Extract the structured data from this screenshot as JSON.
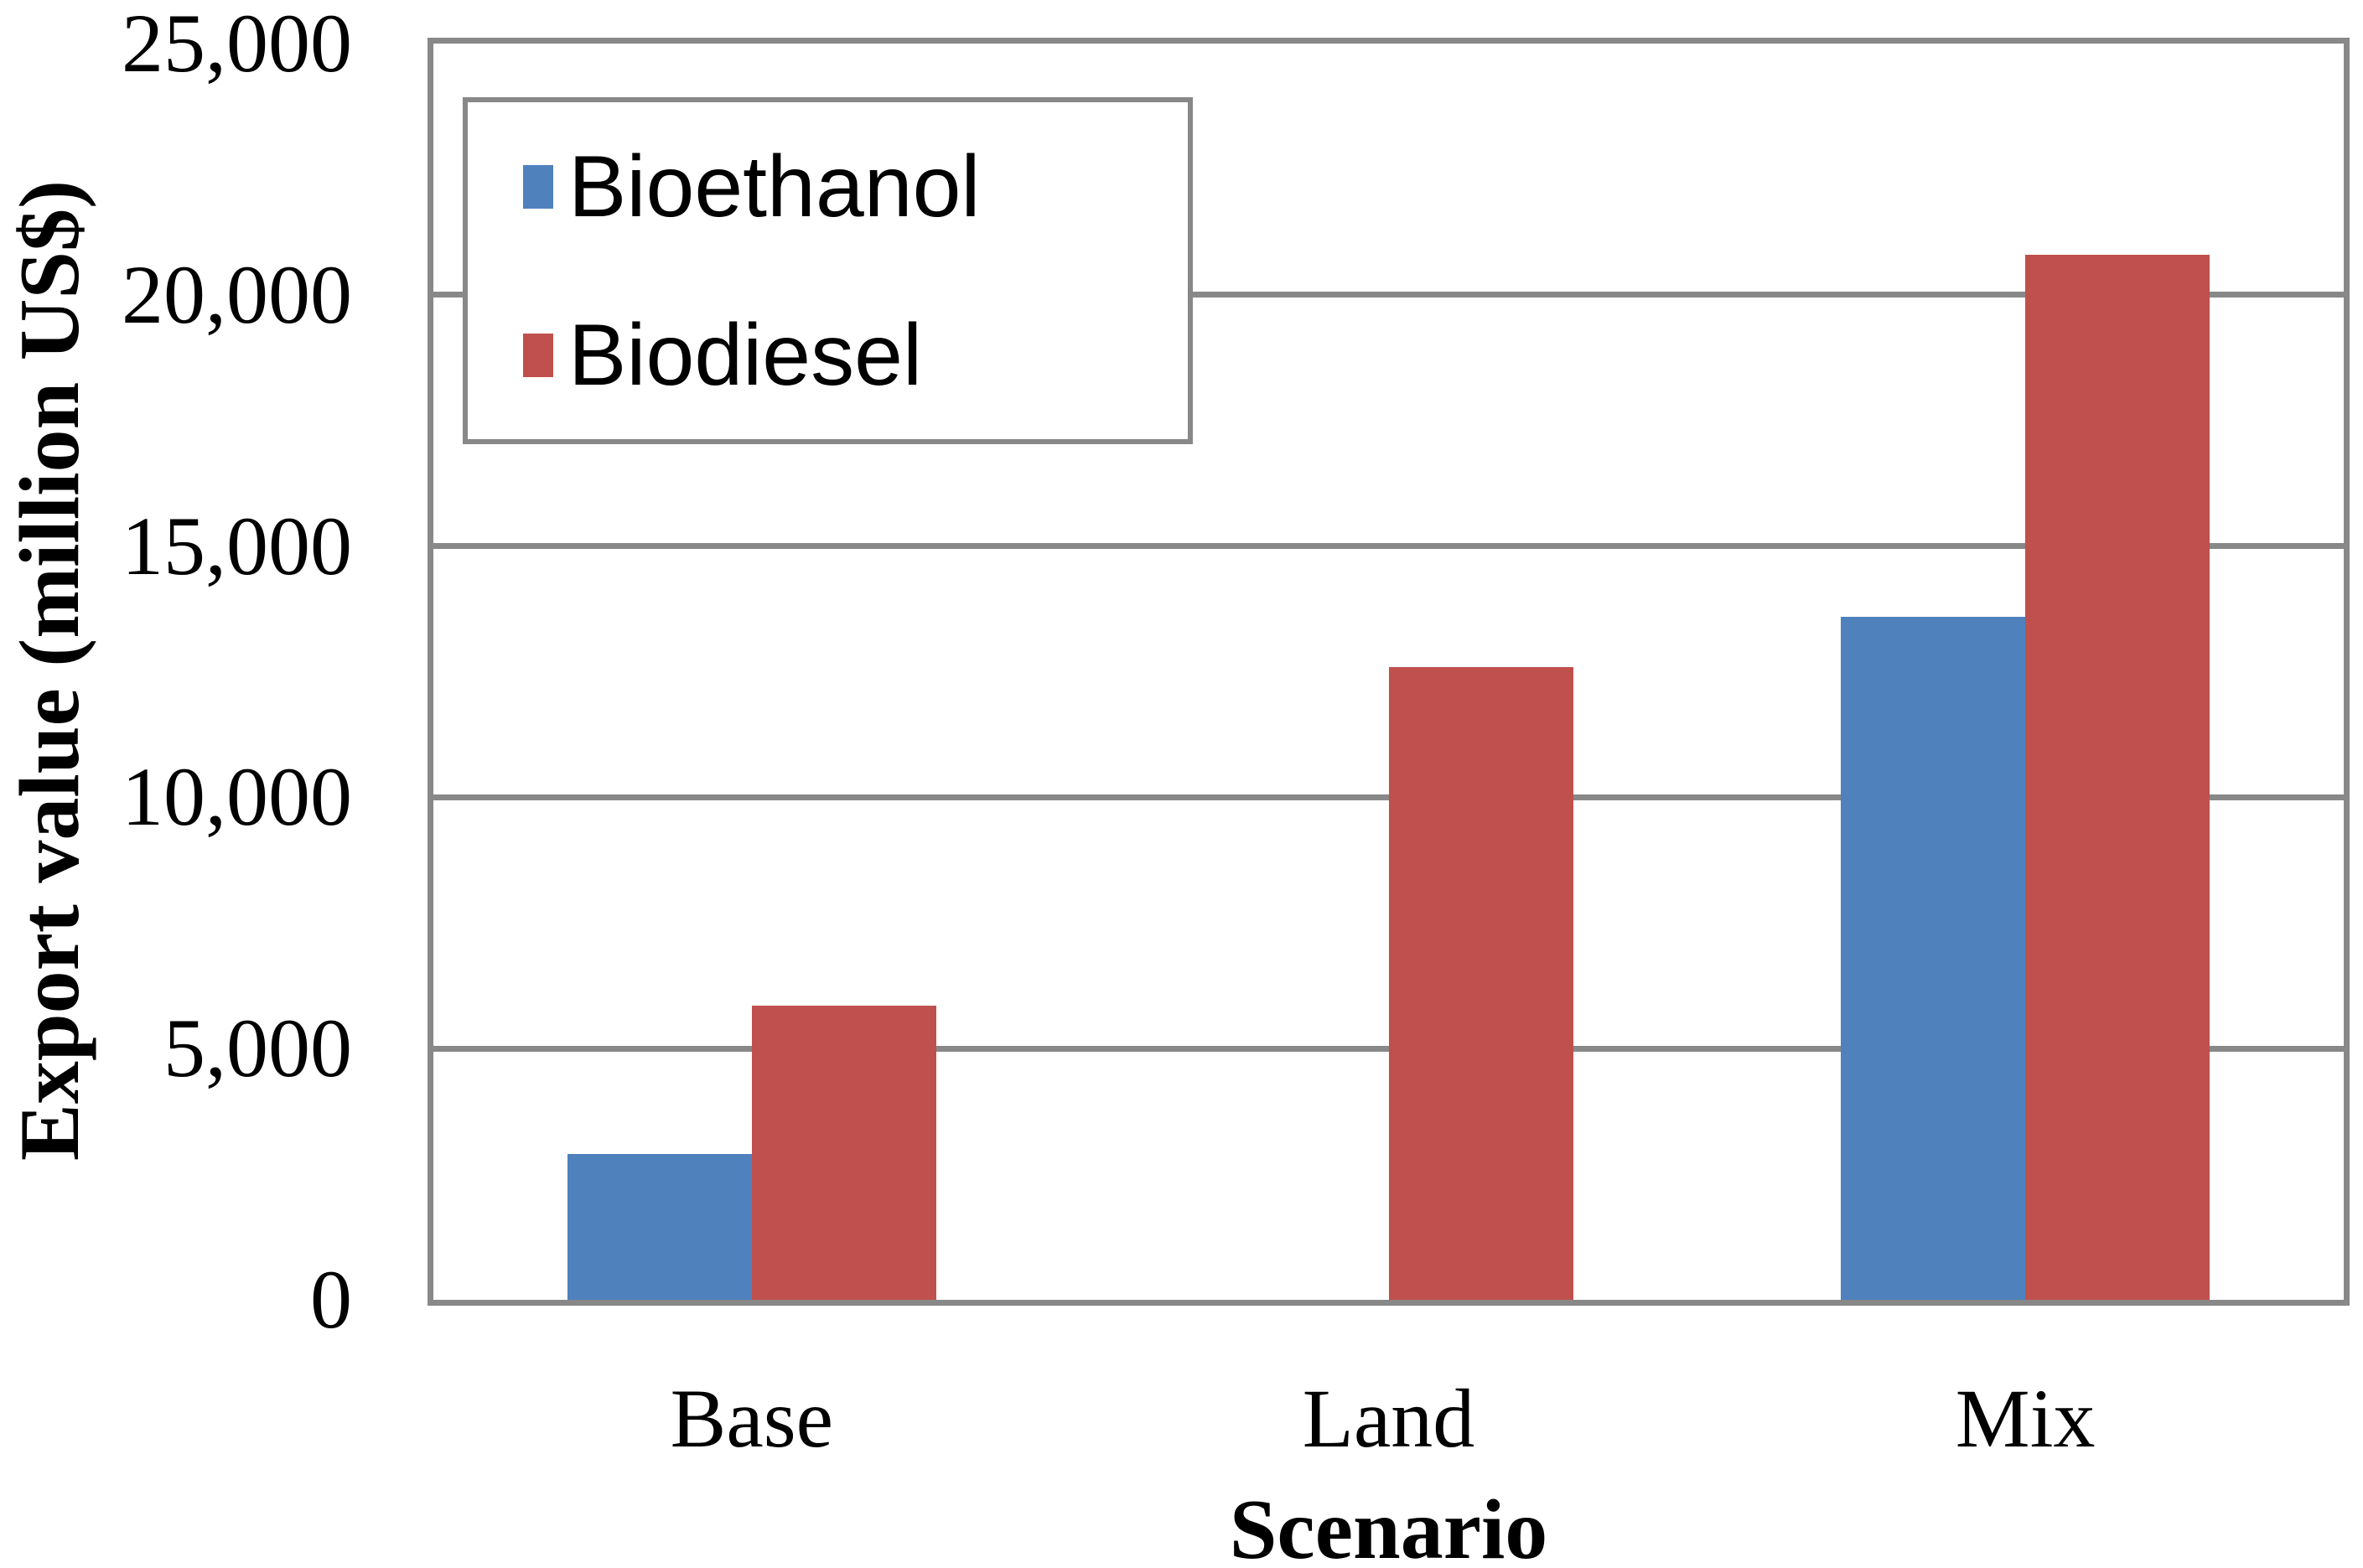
{
  "chart_data": {
    "type": "bar",
    "title": "",
    "categories": [
      "Base",
      "Land",
      "Mix"
    ],
    "series": [
      {
        "name": "Bioethanol",
        "color": "#4F81BD",
        "values": [
          2900,
          0,
          13600
        ]
      },
      {
        "name": "Biodiesel",
        "color": "#C0504D",
        "values": [
          5850,
          12600,
          20800
        ]
      }
    ],
    "xlabel": "Scenario",
    "ylabel": "Export value (million US$)",
    "ylim": [
      0,
      25000
    ],
    "yticks": [
      {
        "v": 0,
        "label": "0"
      },
      {
        "v": 5000,
        "label": "5,000"
      },
      {
        "v": 10000,
        "label": "10,000"
      },
      {
        "v": 15000,
        "label": "15,000"
      },
      {
        "v": 20000,
        "label": "20,000"
      },
      {
        "v": 25000,
        "label": "25,000"
      }
    ],
    "grid": "horizontal",
    "legend_position": "top-left-inside"
  },
  "colors": {
    "line_gray": "#888888",
    "text": "#000000",
    "background": "#FFFFFF"
  }
}
